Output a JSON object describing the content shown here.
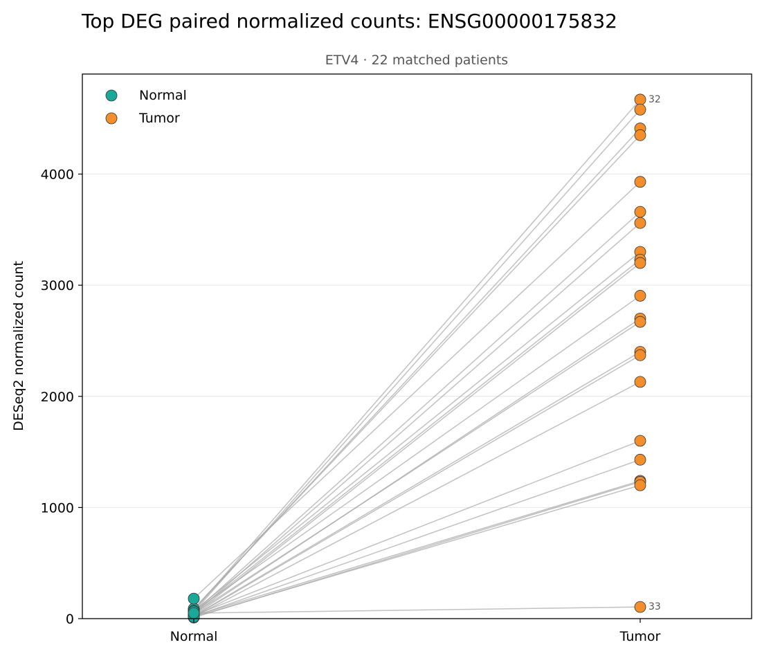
{
  "chart_data": {
    "type": "scatter",
    "title": "Top DEG paired normalized counts: ENSG00000175832",
    "subtitle": "ETV4 · 22 matched patients",
    "xlabel": "",
    "ylabel": "DESeq2 normalized count",
    "categories": [
      "Normal",
      "Tumor"
    ],
    "ylim": [
      0,
      4900
    ],
    "yticks": [
      0,
      1000,
      2000,
      3000,
      4000
    ],
    "grid": true,
    "legend": {
      "placement": "top-left",
      "entries": [
        "Normal",
        "Tumor"
      ]
    },
    "colors": {
      "Normal": "#1aa898",
      "Tumor": "#f28e2b",
      "pair_line": "#a6a6a6",
      "marker_edge": "#333333"
    },
    "pairs": [
      {
        "normal": 75,
        "tumor": 4670,
        "label": "32"
      },
      {
        "normal": 60,
        "tumor": 4580
      },
      {
        "normal": 80,
        "tumor": 4410
      },
      {
        "normal": 90,
        "tumor": 4350
      },
      {
        "normal": 180,
        "tumor": 3930
      },
      {
        "normal": 55,
        "tumor": 3660
      },
      {
        "normal": 40,
        "tumor": 3560
      },
      {
        "normal": 70,
        "tumor": 3300
      },
      {
        "normal": 50,
        "tumor": 3230
      },
      {
        "normal": 35,
        "tumor": 3200
      },
      {
        "normal": 65,
        "tumor": 2905
      },
      {
        "normal": 30,
        "tumor": 2700
      },
      {
        "normal": 45,
        "tumor": 2670
      },
      {
        "normal": 25,
        "tumor": 2400
      },
      {
        "normal": 20,
        "tumor": 2370
      },
      {
        "normal": 15,
        "tumor": 2130
      },
      {
        "normal": 30,
        "tumor": 1600
      },
      {
        "normal": 20,
        "tumor": 1430
      },
      {
        "normal": 25,
        "tumor": 1240
      },
      {
        "normal": 10,
        "tumor": 1230
      },
      {
        "normal": 15,
        "tumor": 1200
      },
      {
        "normal": 50,
        "tumor": 105,
        "label": "33"
      }
    ]
  }
}
